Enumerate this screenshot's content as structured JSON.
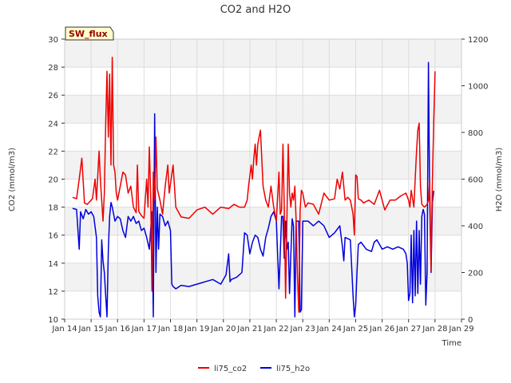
{
  "chart_data": {
    "type": "line",
    "title": "CO2 and H2O",
    "badge": "SW_flux",
    "xlabel": "Time",
    "ylabel_left": "CO2 (mmol/m3)",
    "ylabel_right": "H2O (mmol/m3)",
    "xlim": [
      14,
      29
    ],
    "ylim_left": [
      10,
      30
    ],
    "ylim_right": [
      0,
      1200
    ],
    "x_ticks": [
      14,
      15,
      16,
      17,
      18,
      19,
      20,
      21,
      22,
      23,
      24,
      25,
      26,
      27,
      28,
      29
    ],
    "x_tick_labels": [
      "Jan 14",
      "Jan 15",
      "Jan 16",
      "Jan 17",
      "Jan 18",
      "Jan 19",
      "Jan 20",
      "Jan 21",
      "Jan 22",
      "Jan 23",
      "Jan 24",
      "Jan 25",
      "Jan 26",
      "Jan 27",
      "Jan 28",
      "Jan 29"
    ],
    "y_left_ticks": [
      10,
      12,
      14,
      16,
      18,
      20,
      22,
      24,
      26,
      28,
      30
    ],
    "y_left_tick_labels": [
      "10",
      "12",
      "14",
      "16",
      "18",
      "20",
      "22",
      "24",
      "26",
      "28",
      "30"
    ],
    "y_right_ticks": [
      0,
      200,
      400,
      600,
      800,
      1000,
      1200
    ],
    "y_right_tick_labels": [
      "0",
      "200",
      "400",
      "600",
      "800",
      "1000",
      "1200"
    ],
    "grid": true,
    "legend_position": "bottom-center",
    "series": [
      {
        "name": "li75_co2",
        "axis": "left",
        "color": "#ee0000",
        "x": [
          14.3,
          14.45,
          14.55,
          14.65,
          14.75,
          14.85,
          14.95,
          15.05,
          15.15,
          15.2,
          15.3,
          15.35,
          15.45,
          15.5,
          15.55,
          15.6,
          15.65,
          15.7,
          15.75,
          15.8,
          15.85,
          15.9,
          15.95,
          16.0,
          16.1,
          16.2,
          16.3,
          16.4,
          16.5,
          16.6,
          16.7,
          16.75,
          16.8,
          16.9,
          17.0,
          17.1,
          17.15,
          17.2,
          17.25,
          17.3,
          17.35,
          17.4,
          17.45,
          17.5,
          17.6,
          17.7,
          17.8,
          17.9,
          17.95,
          18.1,
          18.2,
          18.4,
          18.7,
          19.0,
          19.3,
          19.6,
          19.9,
          20.2,
          20.4,
          20.6,
          20.8,
          20.9,
          20.95,
          21.05,
          21.1,
          21.15,
          21.2,
          21.25,
          21.3,
          21.35,
          21.4,
          21.5,
          21.6,
          21.7,
          21.8,
          21.9,
          22.0,
          22.1,
          22.15,
          22.2,
          22.25,
          22.3,
          22.35,
          22.4,
          22.45,
          22.5,
          22.55,
          22.6,
          22.65,
          22.7,
          22.75,
          22.8,
          22.85,
          22.9,
          22.95,
          23.0,
          23.1,
          23.2,
          23.4,
          23.6,
          23.8,
          24.0,
          24.2,
          24.3,
          24.4,
          24.5,
          24.6,
          24.7,
          24.8,
          24.9,
          24.95,
          25.0,
          25.05,
          25.1,
          25.2,
          25.3,
          25.5,
          25.7,
          25.9,
          26.1,
          26.3,
          26.5,
          26.7,
          26.9,
          27.0,
          27.05,
          27.1,
          27.2,
          27.25,
          27.3,
          27.35,
          27.4,
          27.45,
          27.5,
          27.6,
          27.7,
          27.75,
          27.8,
          27.85,
          27.9,
          27.95,
          28.0
        ],
        "y": [
          18.7,
          18.6,
          20.0,
          21.5,
          18.3,
          18.2,
          18.4,
          18.6,
          20.0,
          18.5,
          22.0,
          20.0,
          17.0,
          19.0,
          24.0,
          27.7,
          23.0,
          27.5,
          21.0,
          28.7,
          21.0,
          20.5,
          19.0,
          18.5,
          19.5,
          20.5,
          20.3,
          19.0,
          19.5,
          18.0,
          17.6,
          21.0,
          17.7,
          17.4,
          17.2,
          20.0,
          18.0,
          22.3,
          19.0,
          12.0,
          20.5,
          18.5,
          23.0,
          19.3,
          18.5,
          17.5,
          19.5,
          21.0,
          19.0,
          21.0,
          18.0,
          17.3,
          17.2,
          17.8,
          18.0,
          17.5,
          18.0,
          17.9,
          18.2,
          18.0,
          18.0,
          18.5,
          19.5,
          21.0,
          20.0,
          21.5,
          22.5,
          21.0,
          22.5,
          23.0,
          23.5,
          19.5,
          18.5,
          18.0,
          19.5,
          18.0,
          17.0,
          20.5,
          17.5,
          17.8,
          22.5,
          18.0,
          11.5,
          17.0,
          22.5,
          19.0,
          18.0,
          19.0,
          18.5,
          19.5,
          17.0,
          13.0,
          10.5,
          17.8,
          19.2,
          19.0,
          18.0,
          18.3,
          18.2,
          17.5,
          19.0,
          18.5,
          18.6,
          20.0,
          19.3,
          20.5,
          18.5,
          18.7,
          18.5,
          17.5,
          16.0,
          20.3,
          20.2,
          18.6,
          18.5,
          18.3,
          18.5,
          18.2,
          19.2,
          17.8,
          18.5,
          18.5,
          18.8,
          19.0,
          18.5,
          18.0,
          19.2,
          18.0,
          20.0,
          22.0,
          23.5,
          24.0,
          19.5,
          18.2,
          18.0,
          18.2,
          18.5,
          20.0,
          13.5,
          20.0,
          24.0,
          27.7
        ]
      },
      {
        "name": "li75_h2o",
        "axis": "right",
        "color": "#0000dd",
        "x": [
          14.3,
          14.45,
          14.55,
          14.6,
          14.7,
          14.8,
          14.9,
          15.0,
          15.1,
          15.2,
          15.25,
          15.3,
          15.35,
          15.4,
          15.45,
          15.5,
          15.55,
          15.6,
          15.65,
          15.7,
          15.75,
          15.8,
          15.9,
          16.0,
          16.1,
          16.2,
          16.3,
          16.4,
          16.5,
          16.6,
          16.7,
          16.8,
          16.9,
          17.0,
          17.1,
          17.2,
          17.3,
          17.35,
          17.4,
          17.45,
          17.5,
          17.55,
          17.6,
          17.7,
          17.8,
          17.9,
          18.0,
          18.05,
          18.1,
          18.2,
          18.4,
          18.7,
          19.0,
          19.3,
          19.6,
          19.9,
          20.1,
          20.2,
          20.25,
          20.3,
          20.5,
          20.7,
          20.8,
          20.9,
          21.0,
          21.1,
          21.2,
          21.3,
          21.4,
          21.5,
          21.6,
          21.7,
          21.8,
          21.9,
          22.0,
          22.1,
          22.2,
          22.25,
          22.3,
          22.35,
          22.4,
          22.45,
          22.5,
          22.55,
          22.6,
          22.65,
          22.7,
          22.75,
          22.8,
          22.85,
          22.9,
          22.95,
          23.0,
          23.2,
          23.4,
          23.6,
          23.8,
          24.0,
          24.2,
          24.4,
          24.5,
          24.55,
          24.6,
          24.8,
          24.9,
          24.95,
          25.0,
          25.05,
          25.1,
          25.2,
          25.4,
          25.6,
          25.7,
          25.8,
          25.9,
          26.0,
          26.2,
          26.4,
          26.6,
          26.8,
          26.9,
          26.95,
          27.0,
          27.05,
          27.1,
          27.15,
          27.2,
          27.25,
          27.3,
          27.35,
          27.4,
          27.45,
          27.5,
          27.55,
          27.6,
          27.65,
          27.7,
          27.75,
          27.8,
          27.85,
          27.9,
          27.95
        ],
        "y": [
          475,
          470,
          300,
          460,
          430,
          470,
          450,
          460,
          440,
          350,
          100,
          30,
          10,
          340,
          250,
          200,
          100,
          10,
          300,
          440,
          500,
          480,
          420,
          440,
          430,
          380,
          350,
          440,
          420,
          440,
          410,
          420,
          380,
          390,
          350,
          300,
          460,
          10,
          880,
          200,
          480,
          300,
          450,
          440,
          400,
          420,
          380,
          150,
          140,
          130,
          145,
          140,
          150,
          160,
          170,
          150,
          190,
          280,
          160,
          170,
          180,
          200,
          370,
          360,
          280,
          330,
          360,
          350,
          300,
          270,
          350,
          390,
          440,
          460,
          420,
          130,
          440,
          440,
          260,
          420,
          300,
          330,
          110,
          280,
          430,
          400,
          10,
          420,
          420,
          420,
          30,
          40,
          420,
          420,
          400,
          420,
          400,
          350,
          370,
          400,
          310,
          250,
          350,
          340,
          100,
          10,
          60,
          200,
          320,
          330,
          300,
          290,
          330,
          340,
          320,
          300,
          310,
          300,
          310,
          300,
          280,
          240,
          80,
          110,
          360,
          70,
          380,
          100,
          420,
          110,
          380,
          150,
          440,
          470,
          450,
          60,
          200,
          1100,
          500,
          200,
          500,
          550
        ]
      }
    ]
  }
}
